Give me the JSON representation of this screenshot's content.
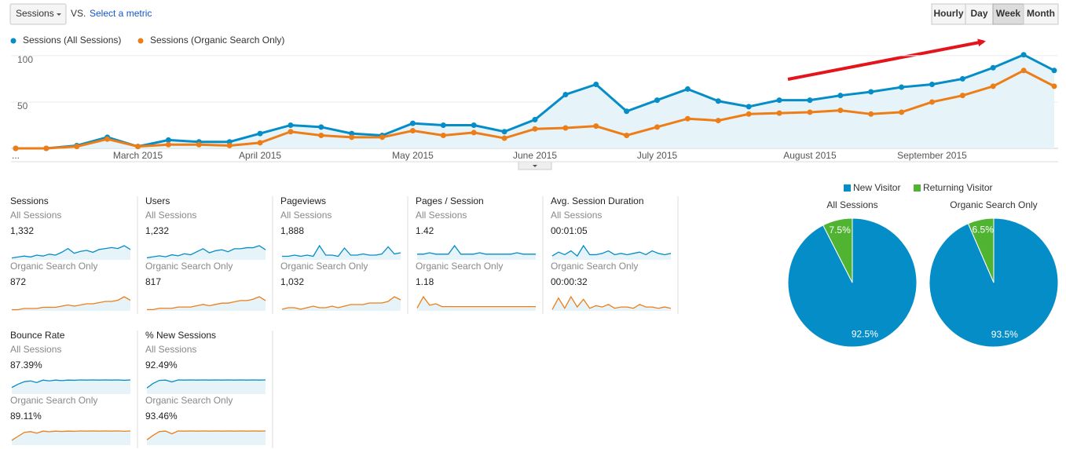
{
  "controls": {
    "metric": "Sessions",
    "vs": "VS.",
    "select": "Select a metric",
    "intervals": [
      "Hourly",
      "Day",
      "Week",
      "Month"
    ]
  },
  "chart_data": [
    {
      "type": "line",
      "categories": [
        "...",
        null,
        null,
        null,
        "March 2015",
        null,
        null,
        null,
        "April 2015",
        null,
        null,
        null,
        null,
        "May 2015",
        null,
        null,
        null,
        "June 2015",
        null,
        null,
        null,
        "July 2015",
        null,
        null,
        null,
        null,
        "August 2015",
        null,
        null,
        null,
        "September 2015",
        null,
        null,
        null,
        null
      ],
      "series": [
        {
          "name": "Sessions (All Sessions)",
          "color": "#058dc7",
          "values": [
            0,
            0,
            3,
            12,
            2,
            9,
            7,
            7,
            16,
            25,
            23,
            16,
            14,
            27,
            25,
            25,
            18,
            31,
            58,
            69,
            40,
            52,
            64,
            51,
            45,
            52,
            52,
            57,
            61,
            66,
            69,
            75,
            87,
            101,
            84
          ]
        },
        {
          "name": "Sessions (Organic Search Only)",
          "color": "#ed7e17",
          "values": [
            0,
            0,
            2,
            10,
            2,
            4,
            4,
            3,
            6,
            18,
            14,
            12,
            12,
            19,
            14,
            17,
            11,
            21,
            22,
            24,
            14,
            23,
            32,
            30,
            37,
            38,
            39,
            41,
            37,
            39,
            50,
            57,
            67,
            84,
            67
          ]
        }
      ],
      "ylim": [
        0,
        105
      ],
      "yticks": [
        50,
        100
      ],
      "grid": true
    },
    {
      "type": "pie",
      "title": "All Sessions",
      "values": [
        92.5,
        7.5
      ],
      "value_labels": [
        "92.5%",
        "7.5%"
      ]
    },
    {
      "type": "pie",
      "title": "Organic Search Only",
      "values": [
        93.5,
        6.5
      ],
      "value_labels": [
        "93.5%",
        "6.5%"
      ]
    }
  ],
  "pie_legend": {
    "labels": [
      "New Visitor",
      "Returning Visitor"
    ],
    "colors": [
      "#058dc7",
      "#50b432"
    ]
  },
  "metrics": [
    {
      "name": "Sessions",
      "all_label": "All Sessions",
      "all_value": "1,332",
      "all_trend": [
        2,
        3,
        4,
        3,
        5,
        4,
        6,
        5,
        8,
        12,
        7,
        9,
        10,
        8,
        11,
        12,
        13,
        12,
        15,
        11
      ],
      "organic_label": "Organic Search Only",
      "organic_value": "872",
      "organic_trend": [
        1,
        1,
        2,
        2,
        2,
        3,
        3,
        3,
        4,
        5,
        4,
        5,
        6,
        6,
        7,
        8,
        8,
        9,
        12,
        9
      ]
    },
    {
      "name": "Users",
      "all_label": "All Sessions",
      "all_value": "1,232",
      "all_trend": [
        2,
        3,
        4,
        3,
        5,
        4,
        6,
        5,
        8,
        11,
        7,
        9,
        10,
        8,
        11,
        11,
        12,
        12,
        14,
        10
      ],
      "organic_label": "Organic Search Only",
      "organic_value": "817",
      "organic_trend": [
        1,
        1,
        2,
        2,
        2,
        3,
        3,
        3,
        4,
        5,
        4,
        5,
        6,
        6,
        7,
        8,
        8,
        9,
        11,
        8
      ]
    },
    {
      "name": "Pageviews",
      "all_label": "All Sessions",
      "all_value": "1,888",
      "all_trend": [
        3,
        3,
        4,
        3,
        4,
        3,
        12,
        4,
        4,
        3,
        10,
        4,
        4,
        5,
        4,
        4,
        5,
        11,
        5,
        6
      ],
      "organic_label": "Organic Search Only",
      "organic_value": "1,032",
      "organic_trend": [
        1,
        2,
        2,
        1,
        2,
        3,
        2,
        2,
        3,
        2,
        3,
        4,
        4,
        4,
        5,
        5,
        5,
        6,
        9,
        7
      ]
    },
    {
      "name": "Pages / Session",
      "all_label": "All Sessions",
      "all_value": "1.42",
      "all_trend": [
        4,
        4,
        5,
        4,
        4,
        4,
        10,
        4,
        4,
        4,
        5,
        4,
        4,
        4,
        4,
        4,
        5,
        4,
        4,
        4
      ],
      "organic_label": "Organic Search Only",
      "organic_value": "1.18",
      "organic_trend": [
        2,
        10,
        4,
        5,
        3,
        3,
        3,
        3,
        3,
        3,
        3,
        3,
        3,
        3,
        3,
        3,
        3,
        3,
        3,
        3
      ]
    },
    {
      "name": "Avg. Session Duration",
      "all_label": "All Sessions",
      "all_value": "00:01:05",
      "all_trend": [
        3,
        6,
        4,
        7,
        3,
        11,
        4,
        4,
        5,
        7,
        4,
        5,
        4,
        5,
        6,
        4,
        7,
        5,
        4,
        5
      ],
      "organic_label": "Organic Search Only",
      "organic_value": "00:00:32",
      "organic_trend": [
        1,
        10,
        2,
        11,
        3,
        9,
        2,
        4,
        3,
        5,
        2,
        3,
        3,
        2,
        5,
        3,
        3,
        2,
        3,
        2
      ]
    },
    {
      "name": "Bounce Rate",
      "all_label": "All Sessions",
      "all_value": "87.39%",
      "all_trend": [
        40,
        60,
        75,
        80,
        70,
        85,
        80,
        85,
        82,
        85,
        84,
        86,
        85,
        86,
        85,
        86,
        85,
        86,
        84,
        86
      ],
      "organic_label": "Organic Search Only",
      "organic_value": "89.11%",
      "organic_trend": [
        30,
        55,
        80,
        85,
        75,
        88,
        84,
        88,
        86,
        88,
        87,
        89,
        88,
        89,
        88,
        89,
        88,
        89,
        87,
        89
      ]
    },
    {
      "name": "% New Sessions",
      "all_label": "All Sessions",
      "all_value": "92.49%",
      "all_trend": [
        40,
        70,
        90,
        92,
        80,
        93,
        92,
        93,
        92,
        93,
        92,
        93,
        92,
        93,
        92,
        93,
        92,
        93,
        92,
        93
      ],
      "organic_label": "Organic Search Only",
      "organic_value": "93.46%",
      "organic_trend": [
        35,
        65,
        90,
        93,
        75,
        94,
        93,
        94,
        93,
        94,
        93,
        94,
        93,
        94,
        93,
        94,
        93,
        94,
        93,
        94
      ]
    }
  ]
}
